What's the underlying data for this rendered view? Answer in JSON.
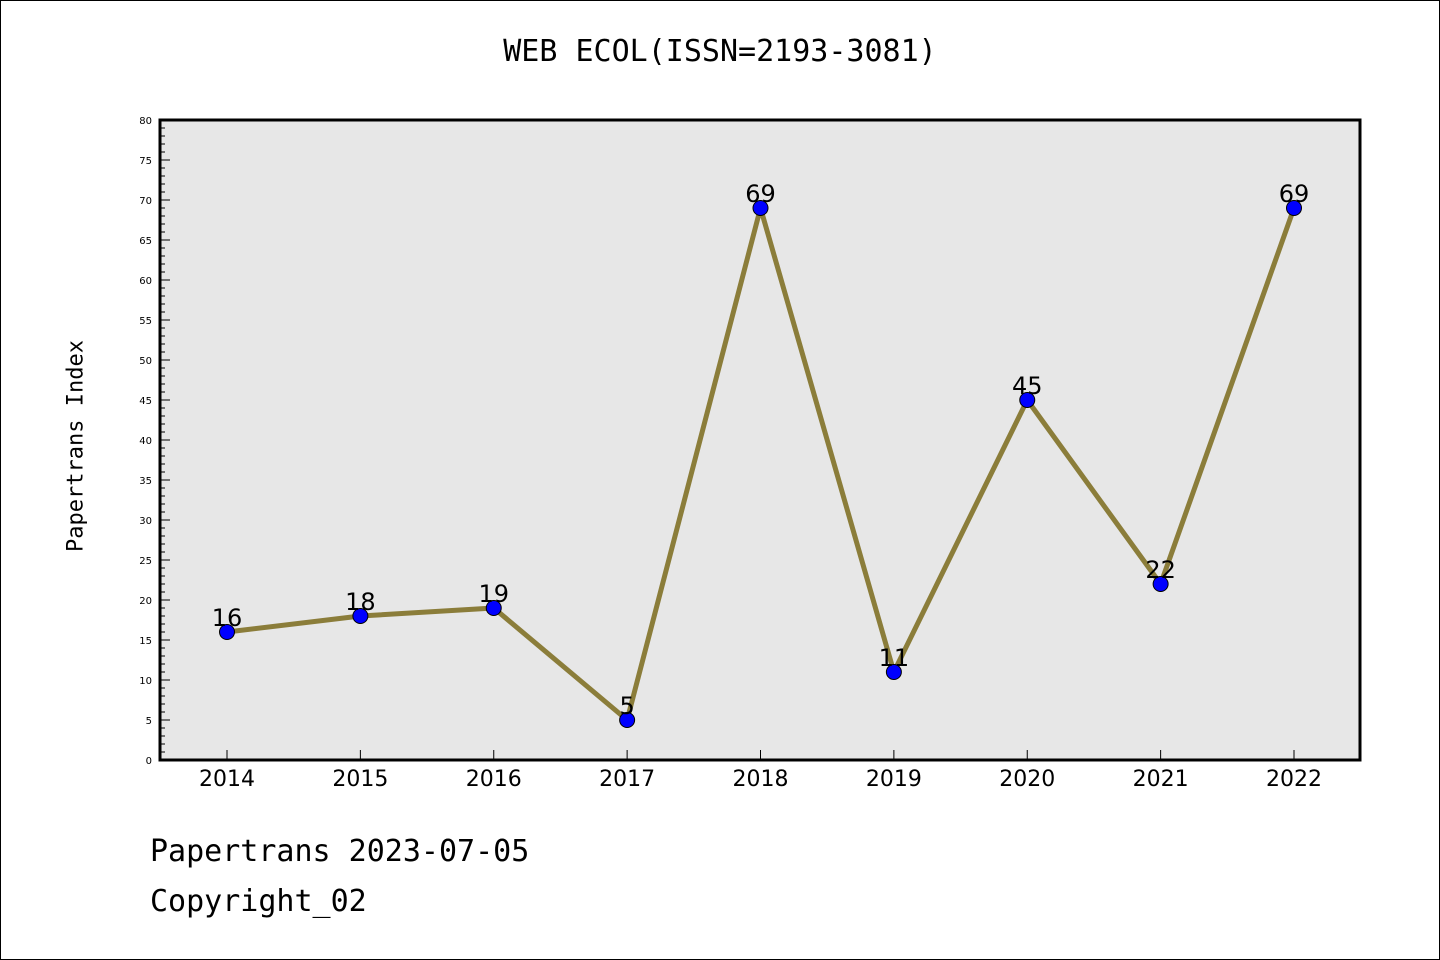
{
  "chart_data": {
    "type": "line",
    "title": "WEB ECOL(ISSN=2193-3081)",
    "xlabel": "",
    "ylabel": "Papertrans Index",
    "categories": [
      "2014",
      "2015",
      "2016",
      "2017",
      "2018",
      "2019",
      "2020",
      "2021",
      "2022"
    ],
    "series": [
      {
        "values": [
          16,
          18,
          19,
          5,
          69,
          11,
          45,
          22,
          69
        ],
        "line_color": "#8b7d3a",
        "marker_color": "#0000ff"
      }
    ],
    "data_labels": [
      "16",
      "18",
      "19",
      "5",
      "69",
      "11",
      "45",
      "22",
      "69"
    ],
    "ylim": [
      0,
      80
    ],
    "y_major_ticks": [
      0,
      5,
      10,
      15,
      20,
      25,
      30,
      35,
      40,
      45,
      50,
      55,
      60,
      65,
      70,
      75,
      80
    ],
    "y_minor_step": 1,
    "grid": false,
    "plot_background": "#e7e7e7"
  },
  "footer": {
    "line1": "Papertrans 2023-07-05",
    "line2": "Copyright_02"
  }
}
